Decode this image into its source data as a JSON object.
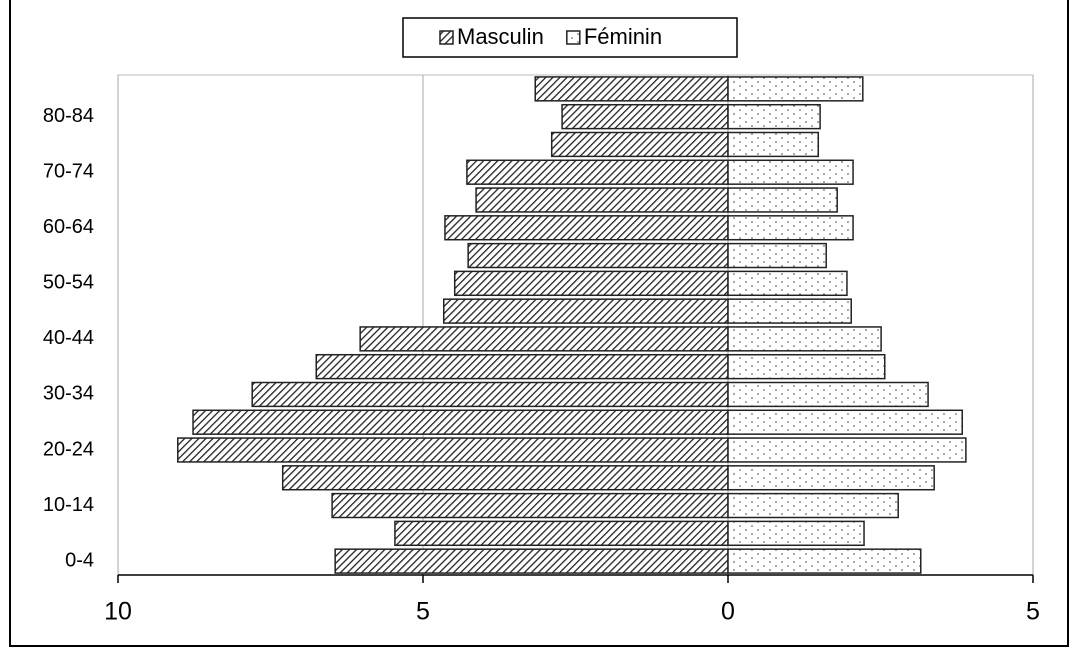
{
  "chart_data": {
    "type": "pyramid",
    "categories": [
      "0-4",
      null,
      "10-14",
      null,
      "20-24",
      null,
      "30-34",
      null,
      "40-44",
      null,
      "50-54",
      null,
      "60-64",
      null,
      "70-74",
      null,
      "80-84",
      null
    ],
    "series": [
      {
        "name": "Masculin",
        "color": "#222222",
        "pattern": "hatch",
        "values": [
          -6.44,
          -5.46,
          -6.49,
          -7.3,
          -9.02,
          -8.77,
          -7.8,
          -6.75,
          -6.03,
          -4.66,
          -4.48,
          -4.26,
          -4.64,
          -4.13,
          -4.28,
          -2.89,
          -2.72,
          -3.16
        ]
      },
      {
        "name": "Féminin",
        "color": "#222222",
        "pattern": "dots",
        "values": [
          3.16,
          2.23,
          2.79,
          3.38,
          3.9,
          3.84,
          3.28,
          2.57,
          2.51,
          2.02,
          1.95,
          1.61,
          2.05,
          1.79,
          2.05,
          1.48,
          1.51,
          2.21
        ]
      }
    ],
    "xlim": [
      -10,
      5
    ],
    "xticks": [
      {
        "value": -10,
        "label": "10"
      },
      {
        "value": -5,
        "label": "5"
      },
      0,
      5
    ],
    "grid": true,
    "legend": "top"
  }
}
